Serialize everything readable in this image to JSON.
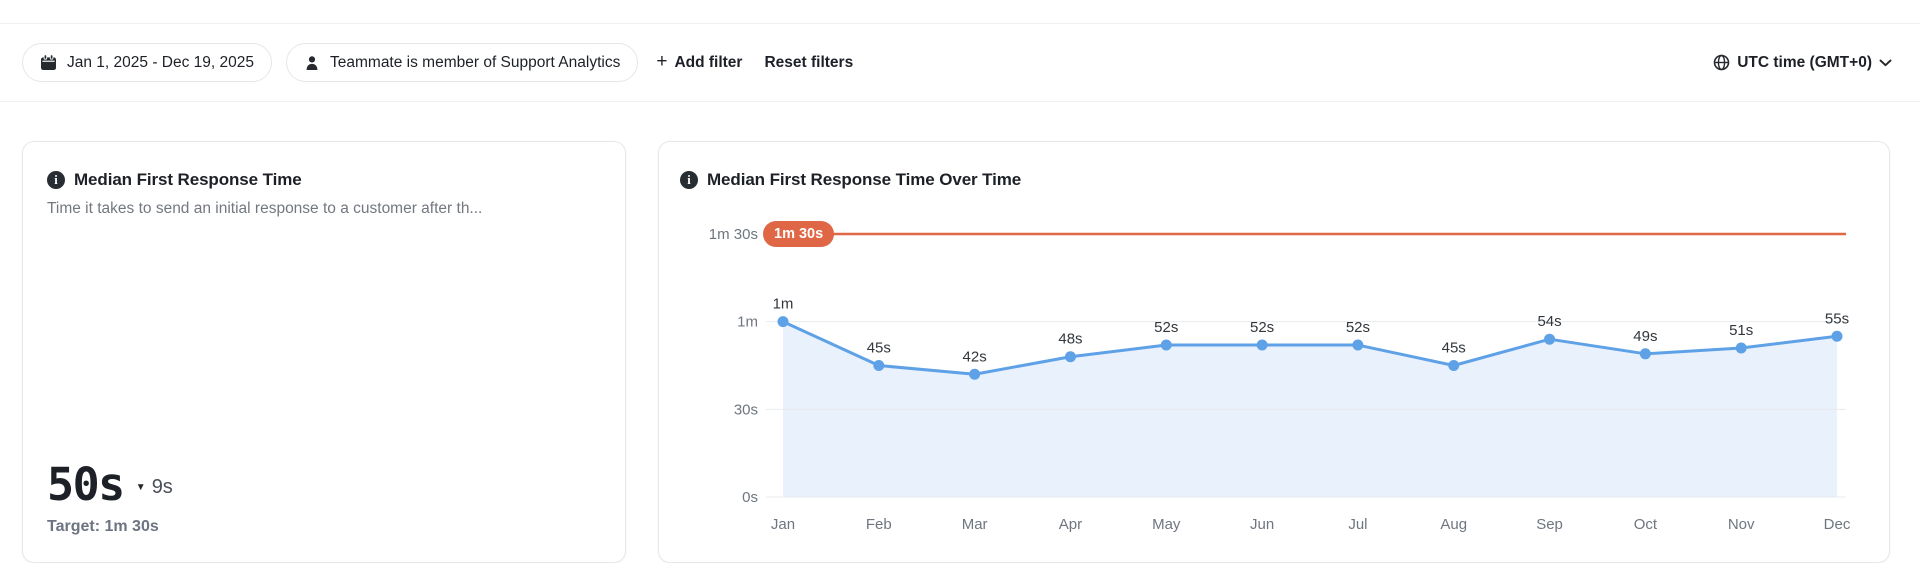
{
  "filter_bar": {
    "date_range": "Jan 1, 2025 - Dec 19, 2025",
    "teammate_filter": "Teammate is member of Support Analytics",
    "add_filter_plus": "+",
    "add_filter_label": "Add filter",
    "reset_filters_label": "Reset filters",
    "timezone_label": "UTC time (GMT+0)"
  },
  "icons": {
    "calendar": "calendar-icon",
    "person": "person-icon",
    "globe": "globe-icon",
    "chevron_down": "chevron-down-icon",
    "info": "info-icon",
    "info_glyph": "i",
    "delta_down_glyph": "▼"
  },
  "summary_card": {
    "title": "Median First Response Time",
    "description": "Time it takes to send an initial response to a customer after th...",
    "value": "50s",
    "delta": "9s",
    "delta_direction": "down",
    "target_label": "Target: 1m 30s"
  },
  "chart_card": {
    "title": "Median First Response Time Over Time",
    "target_badge": "1m 30s"
  },
  "chart_data": {
    "type": "line",
    "title": "Median First Response Time Over Time",
    "x": [
      "Jan",
      "Feb",
      "Mar",
      "Apr",
      "May",
      "Jun",
      "Jul",
      "Aug",
      "Sep",
      "Oct",
      "Nov",
      "Dec"
    ],
    "values_seconds": [
      60,
      45,
      42,
      48,
      52,
      52,
      52,
      45,
      54,
      49,
      51,
      55
    ],
    "point_labels": [
      "1m",
      "45s",
      "42s",
      "48s",
      "52s",
      "52s",
      "52s",
      "45s",
      "54s",
      "49s",
      "51s",
      "55s"
    ],
    "target_seconds": 90,
    "target_label": "1m 30s",
    "y_ticks": [
      {
        "label": "1m 30s",
        "seconds": 90
      },
      {
        "label": "1m",
        "seconds": 60
      },
      {
        "label": "30s",
        "seconds": 30
      },
      {
        "label": "0s",
        "seconds": 0
      }
    ],
    "ylim": [
      0,
      90
    ],
    "grid": true,
    "legend": "none",
    "area_fill": true,
    "colors": {
      "line": "#5fa1e7",
      "point": "#5fa1e7",
      "area": "#e9f1fc",
      "target": "#e06745",
      "grid": "#e7e9ec",
      "point_label": "#32373d",
      "axis_label": "#6f7680"
    }
  }
}
